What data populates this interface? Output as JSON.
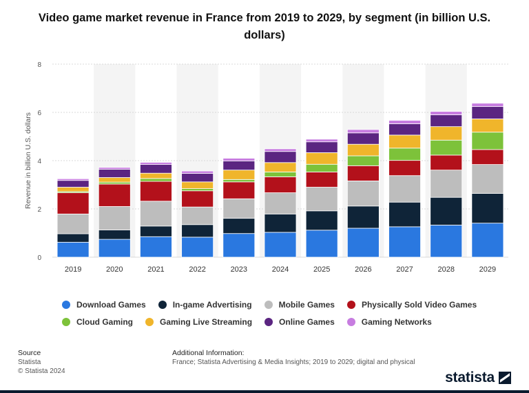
{
  "chart_title": "Video game market revenue in France from 2019 to 2029, by segment (in billion U.S. dollars)",
  "colors": {
    "Download Games": "#2a78e0",
    "In-game Advertising": "#0f2438",
    "Mobile Games": "#bdbdbd",
    "Physically Sold Video Games": "#b3111b",
    "Cloud Gaming": "#7dc23a",
    "Gaming Live Streaming": "#f0b52b",
    "Online Games": "#5b2581",
    "Gaming Networks": "#c77de0"
  },
  "chart_data": {
    "type": "bar",
    "stacked": true,
    "title": "Video game market revenue in France from 2019 to 2029, by segment (in billion U.S. dollars)",
    "xlabel": "",
    "ylabel": "Revenue in billion U.S. dollars",
    "ylim": [
      0,
      8
    ],
    "yticks": [
      0,
      2,
      4,
      6,
      8
    ],
    "grid": true,
    "legend_position": "bottom",
    "categories": [
      "2019",
      "2020",
      "2021",
      "2022",
      "2023",
      "2024",
      "2025",
      "2026",
      "2027",
      "2028",
      "2029"
    ],
    "series": [
      {
        "name": "Download Games",
        "values": [
          0.62,
          0.74,
          0.85,
          0.83,
          0.98,
          1.03,
          1.12,
          1.2,
          1.26,
          1.33,
          1.41
        ]
      },
      {
        "name": "In-game Advertising",
        "values": [
          0.35,
          0.39,
          0.44,
          0.52,
          0.63,
          0.76,
          0.8,
          0.92,
          1.02,
          1.15,
          1.23
        ]
      },
      {
        "name": "Mobile Games",
        "values": [
          0.82,
          0.97,
          1.03,
          0.73,
          0.81,
          0.88,
          0.98,
          1.04,
          1.1,
          1.13,
          1.2
        ]
      },
      {
        "name": "Physically Sold Video Games",
        "values": [
          0.88,
          0.93,
          0.82,
          0.67,
          0.7,
          0.66,
          0.63,
          0.63,
          0.63,
          0.62,
          0.62
        ]
      },
      {
        "name": "Cloud Gaming",
        "values": [
          0.05,
          0.08,
          0.12,
          0.09,
          0.1,
          0.2,
          0.32,
          0.41,
          0.51,
          0.62,
          0.72
        ]
      },
      {
        "name": "Gaming Live Streaming",
        "values": [
          0.18,
          0.19,
          0.22,
          0.28,
          0.39,
          0.39,
          0.48,
          0.48,
          0.54,
          0.56,
          0.55
        ]
      },
      {
        "name": "Online Games",
        "values": [
          0.28,
          0.34,
          0.36,
          0.35,
          0.38,
          0.46,
          0.45,
          0.47,
          0.47,
          0.49,
          0.51
        ]
      },
      {
        "name": "Gaming Networks",
        "values": [
          0.07,
          0.08,
          0.09,
          0.1,
          0.11,
          0.11,
          0.11,
          0.14,
          0.14,
          0.14,
          0.14
        ]
      }
    ]
  },
  "footer": {
    "source_heading": "Source",
    "source_name": "Statista",
    "copyright": "© Statista 2024",
    "additional_heading": "Additional Information:",
    "additional_text": "France; Statista Advertising & Media Insights; 2019 to 2029; digital and physical"
  },
  "logo_text": "statista"
}
